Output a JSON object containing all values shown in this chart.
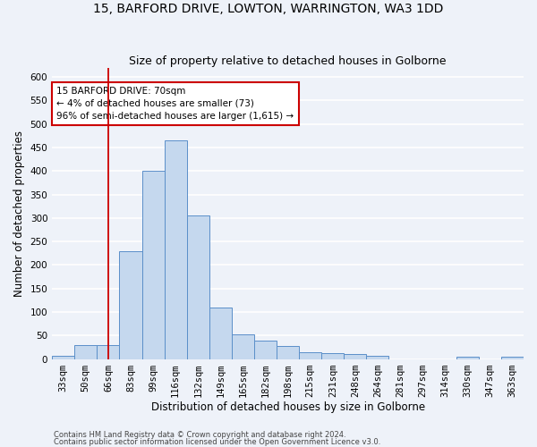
{
  "title": "15, BARFORD DRIVE, LOWTON, WARRINGTON, WA3 1DD",
  "subtitle": "Size of property relative to detached houses in Golborne",
  "xlabel": "Distribution of detached houses by size in Golborne",
  "ylabel": "Number of detached properties",
  "categories": [
    "33sqm",
    "50sqm",
    "66sqm",
    "83sqm",
    "99sqm",
    "116sqm",
    "132sqm",
    "149sqm",
    "165sqm",
    "182sqm",
    "198sqm",
    "215sqm",
    "231sqm",
    "248sqm",
    "264sqm",
    "281sqm",
    "297sqm",
    "314sqm",
    "330sqm",
    "347sqm",
    "363sqm"
  ],
  "values": [
    6,
    30,
    30,
    230,
    400,
    465,
    305,
    110,
    53,
    40,
    27,
    15,
    13,
    10,
    7,
    0,
    0,
    0,
    5,
    0,
    5
  ],
  "bar_color": "#c5d8ee",
  "bar_edge_color": "#5b8fc9",
  "property_line_x": 2.0,
  "property_line_color": "#cc0000",
  "annotation_text": "15 BARFORD DRIVE: 70sqm\n← 4% of detached houses are smaller (73)\n96% of semi-detached houses are larger (1,615) →",
  "annotation_box_color": "#cc0000",
  "ylim": [
    0,
    620
  ],
  "yticks": [
    0,
    50,
    100,
    150,
    200,
    250,
    300,
    350,
    400,
    450,
    500,
    550,
    600
  ],
  "footer1": "Contains HM Land Registry data © Crown copyright and database right 2024.",
  "footer2": "Contains public sector information licensed under the Open Government Licence v3.0.",
  "bg_color": "#eef2f9",
  "grid_color": "#ffffff",
  "title_fontsize": 10,
  "subtitle_fontsize": 9,
  "axis_label_fontsize": 8.5,
  "tick_fontsize": 7.5,
  "annotation_fontsize": 7.5
}
